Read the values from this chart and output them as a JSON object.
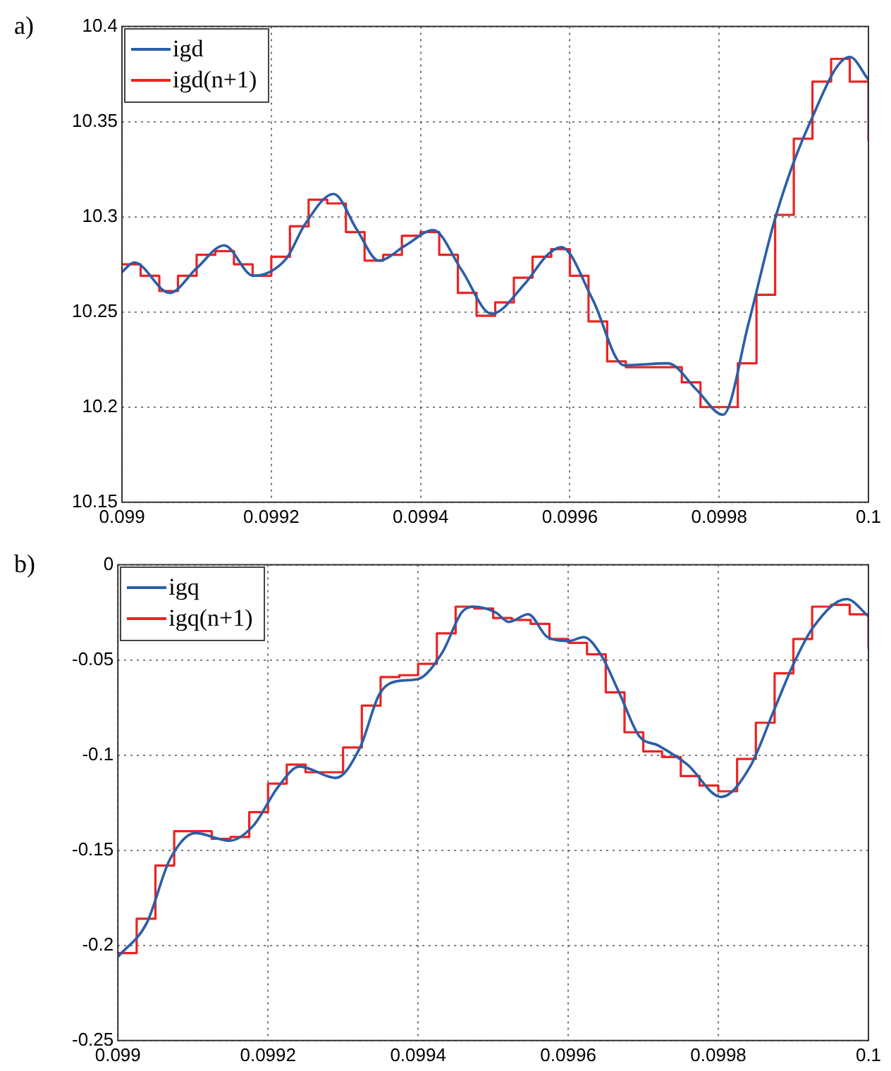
{
  "chart_data": [
    {
      "type": "line",
      "annotations": [
        "a)"
      ],
      "legend": "top left",
      "grid": true,
      "xlim": [
        0.099,
        0.1
      ],
      "xticks": [
        0.099,
        0.0992,
        0.0994,
        0.0996,
        0.0998,
        0.1
      ],
      "ylim": [
        10.15,
        10.4
      ],
      "yticks": [
        10.15,
        10.2,
        10.25,
        10.3,
        10.35,
        10.4
      ],
      "series": [
        {
          "name": "igd",
          "type": "line",
          "color": "#2b5ea7",
          "x": [
            0.099,
            0.0990163,
            0.0990638,
            0.0991,
            0.0991368,
            0.0991759,
            0.09922,
            0.099245,
            0.0992834,
            0.099315,
            0.099344,
            0.09938,
            0.099417,
            0.099455,
            0.0994951,
            0.09954,
            0.09957,
            0.0995885,
            0.09963,
            0.0996724,
            0.0997314,
            0.09977,
            0.0998051,
            0.09984,
            0.0998756,
            0.09992,
            0.099975,
            0.1
          ],
          "values": [
            10.271,
            10.276,
            10.26,
            10.273,
            10.285,
            10.269,
            10.278,
            10.296,
            10.312,
            10.293,
            10.277,
            10.285,
            10.293,
            10.272,
            10.249,
            10.265,
            10.28,
            10.284,
            10.257,
            10.222,
            10.223,
            10.209,
            10.196,
            10.245,
            10.3,
            10.348,
            10.384,
            10.372
          ]
        },
        {
          "name": "igd(n+1)",
          "type": "step",
          "color": "#ee2222",
          "x": [
            0.099,
            0.099025,
            0.09905,
            0.099075,
            0.0991,
            0.099125,
            0.09915,
            0.099175,
            0.0992,
            0.099225,
            0.09925,
            0.099275,
            0.0993,
            0.099325,
            0.09935,
            0.099375,
            0.0994,
            0.099425,
            0.09945,
            0.099475,
            0.0995,
            0.099525,
            0.09955,
            0.099575,
            0.0996,
            0.099625,
            0.09965,
            0.099675,
            0.0997,
            0.099725,
            0.09975,
            0.099775,
            0.0998,
            0.099825,
            0.09985,
            0.099875,
            0.0999,
            0.099925,
            0.09995,
            0.099975,
            0.1
          ],
          "values": [
            10.275,
            10.269,
            10.261,
            10.269,
            10.28,
            10.282,
            10.275,
            10.269,
            10.279,
            10.295,
            10.309,
            10.307,
            10.292,
            10.277,
            10.28,
            10.29,
            10.292,
            10.28,
            10.26,
            10.248,
            10.255,
            10.268,
            10.279,
            10.283,
            10.269,
            10.245,
            10.224,
            10.221,
            10.221,
            10.221,
            10.213,
            10.2,
            10.2,
            10.223,
            10.259,
            10.301,
            10.341,
            10.371,
            10.383,
            10.371,
            10.34
          ]
        }
      ]
    },
    {
      "type": "line",
      "annotations": [
        "b)"
      ],
      "legend": "top left",
      "grid": true,
      "xlim": [
        0.099,
        0.1
      ],
      "xticks": [
        0.099,
        0.0992,
        0.0994,
        0.0996,
        0.0998,
        0.1
      ],
      "ylim": [
        -0.25,
        0
      ],
      "yticks": [
        -0.25,
        -0.2,
        -0.15,
        -0.1,
        -0.05,
        0
      ],
      "series": [
        {
          "name": "igq",
          "type": "line",
          "color": "#2b5ea7",
          "x": [
            0.099,
            0.0990387,
            0.099069,
            0.0991032,
            0.0991484,
            0.0991806,
            0.0992129,
            0.0992419,
            0.0992903,
            0.0993226,
            0.0993484,
            0.0993742,
            0.0994,
            0.0994323,
            0.0994581,
            0.0994742,
            0.0995032,
            0.0995209,
            0.0995466,
            0.0995724,
            0.0996013,
            0.0996206,
            0.0996431,
            0.0996688,
            0.0996945,
            0.0997202,
            0.0997588,
            0.0998038,
            0.0998424,
            0.0998746,
            0.0999003,
            0.099926,
            0.099971,
            0.1
          ],
          "values": [
            -0.206,
            -0.188,
            -0.155,
            -0.141,
            -0.145,
            -0.137,
            -0.117,
            -0.106,
            -0.112,
            -0.096,
            -0.068,
            -0.061,
            -0.06,
            -0.046,
            -0.025,
            -0.022,
            -0.025,
            -0.03,
            -0.026,
            -0.038,
            -0.04,
            -0.038,
            -0.047,
            -0.068,
            -0.09,
            -0.095,
            -0.105,
            -0.122,
            -0.106,
            -0.076,
            -0.052,
            -0.033,
            -0.018,
            -0.027
          ]
        },
        {
          "name": "igq(n+1)",
          "type": "step",
          "color": "#ee2222",
          "x": [
            0.099,
            0.099025,
            0.09905,
            0.099075,
            0.0991,
            0.099125,
            0.09915,
            0.099175,
            0.0992,
            0.099225,
            0.09925,
            0.099275,
            0.0993,
            0.099325,
            0.09935,
            0.099375,
            0.0994,
            0.099425,
            0.09945,
            0.099475,
            0.0995,
            0.099525,
            0.09955,
            0.099575,
            0.0996,
            0.099625,
            0.09965,
            0.099675,
            0.0997,
            0.099725,
            0.09975,
            0.099775,
            0.0998,
            0.099825,
            0.09985,
            0.099875,
            0.0999,
            0.099925,
            0.09995,
            0.099975,
            0.1
          ],
          "values": [
            -0.204,
            -0.186,
            -0.158,
            -0.14,
            -0.14,
            -0.144,
            -0.143,
            -0.13,
            -0.115,
            -0.105,
            -0.109,
            -0.109,
            -0.096,
            -0.074,
            -0.059,
            -0.058,
            -0.052,
            -0.036,
            -0.022,
            -0.023,
            -0.028,
            -0.029,
            -0.031,
            -0.039,
            -0.041,
            -0.047,
            -0.067,
            -0.088,
            -0.098,
            -0.101,
            -0.111,
            -0.116,
            -0.119,
            -0.102,
            -0.083,
            -0.057,
            -0.039,
            -0.022,
            -0.021,
            -0.026,
            -0.044
          ]
        }
      ]
    }
  ]
}
